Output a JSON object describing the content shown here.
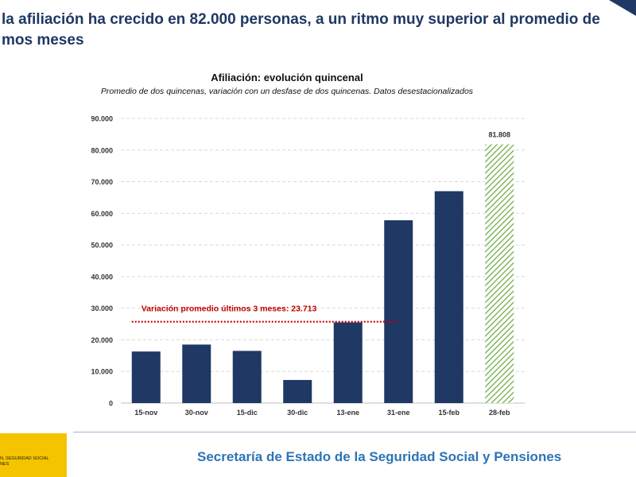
{
  "headline": {
    "line1": "la afiliación ha crecido en 82.000 personas, a un ritmo muy superior al promedio de",
    "line2": "mos meses"
  },
  "chart_data": {
    "type": "bar",
    "title": "Afiliación: evolución quincenal",
    "subtitle": "Promedio de dos quincenas, variación con un desfase de dos quincenas. Datos desestacionalizados",
    "categories": [
      "15-nov",
      "30-nov",
      "15-dic",
      "30-dic",
      "13-ene",
      "31-ene",
      "15-feb",
      "28-feb"
    ],
    "values": [
      16300,
      18500,
      16500,
      7300,
      25500,
      57800,
      67000,
      81808
    ],
    "bar_colors": [
      "#1f3864",
      "#1f3864",
      "#1f3864",
      "#1f3864",
      "#1f3864",
      "#1f3864",
      "#1f3864",
      "hatched-green"
    ],
    "highlight_label": "81.808",
    "yticks": [
      0,
      10000,
      20000,
      30000,
      40000,
      50000,
      60000,
      70000,
      80000,
      90000
    ],
    "ytick_labels": [
      "0",
      "10.000",
      "20.000",
      "30.000",
      "40.000",
      "50.000",
      "60.000",
      "70.000",
      "80.000",
      "90.000"
    ],
    "ylim": [
      0,
      90000
    ],
    "grid": true,
    "reference_line": {
      "label": "Variación promedio últimos 3 meses: 23.713",
      "value": 23713,
      "color": "#c00000",
      "from_category": "15-nov",
      "to_category": "31-ene"
    },
    "colors": {
      "bar": "#1f3864",
      "highlight": "#70ad47",
      "grid": "#d9d9d9"
    }
  },
  "footer": {
    "title": "Secretaría de Estado de la Seguridad Social y Pensiones",
    "logo_text": "N, SEGURIDAD SOCIAL\nNES"
  }
}
